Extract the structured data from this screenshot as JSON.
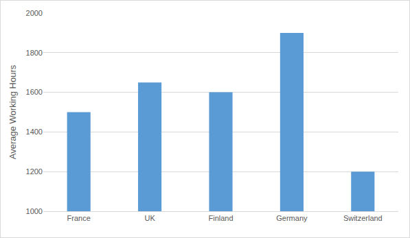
{
  "chart_data": {
    "type": "bar",
    "y_label": "Average Working Hours",
    "categories": [
      "France",
      "UK",
      "Finland",
      "Germany",
      "Switzerland"
    ],
    "values": [
      1500,
      1650,
      1600,
      1900,
      1200
    ],
    "color": "#5b9bd5",
    "ylim": [
      1000,
      2000
    ],
    "yticks": [
      1000,
      1200,
      1400,
      1600,
      1800,
      2000
    ],
    "grid": true
  }
}
